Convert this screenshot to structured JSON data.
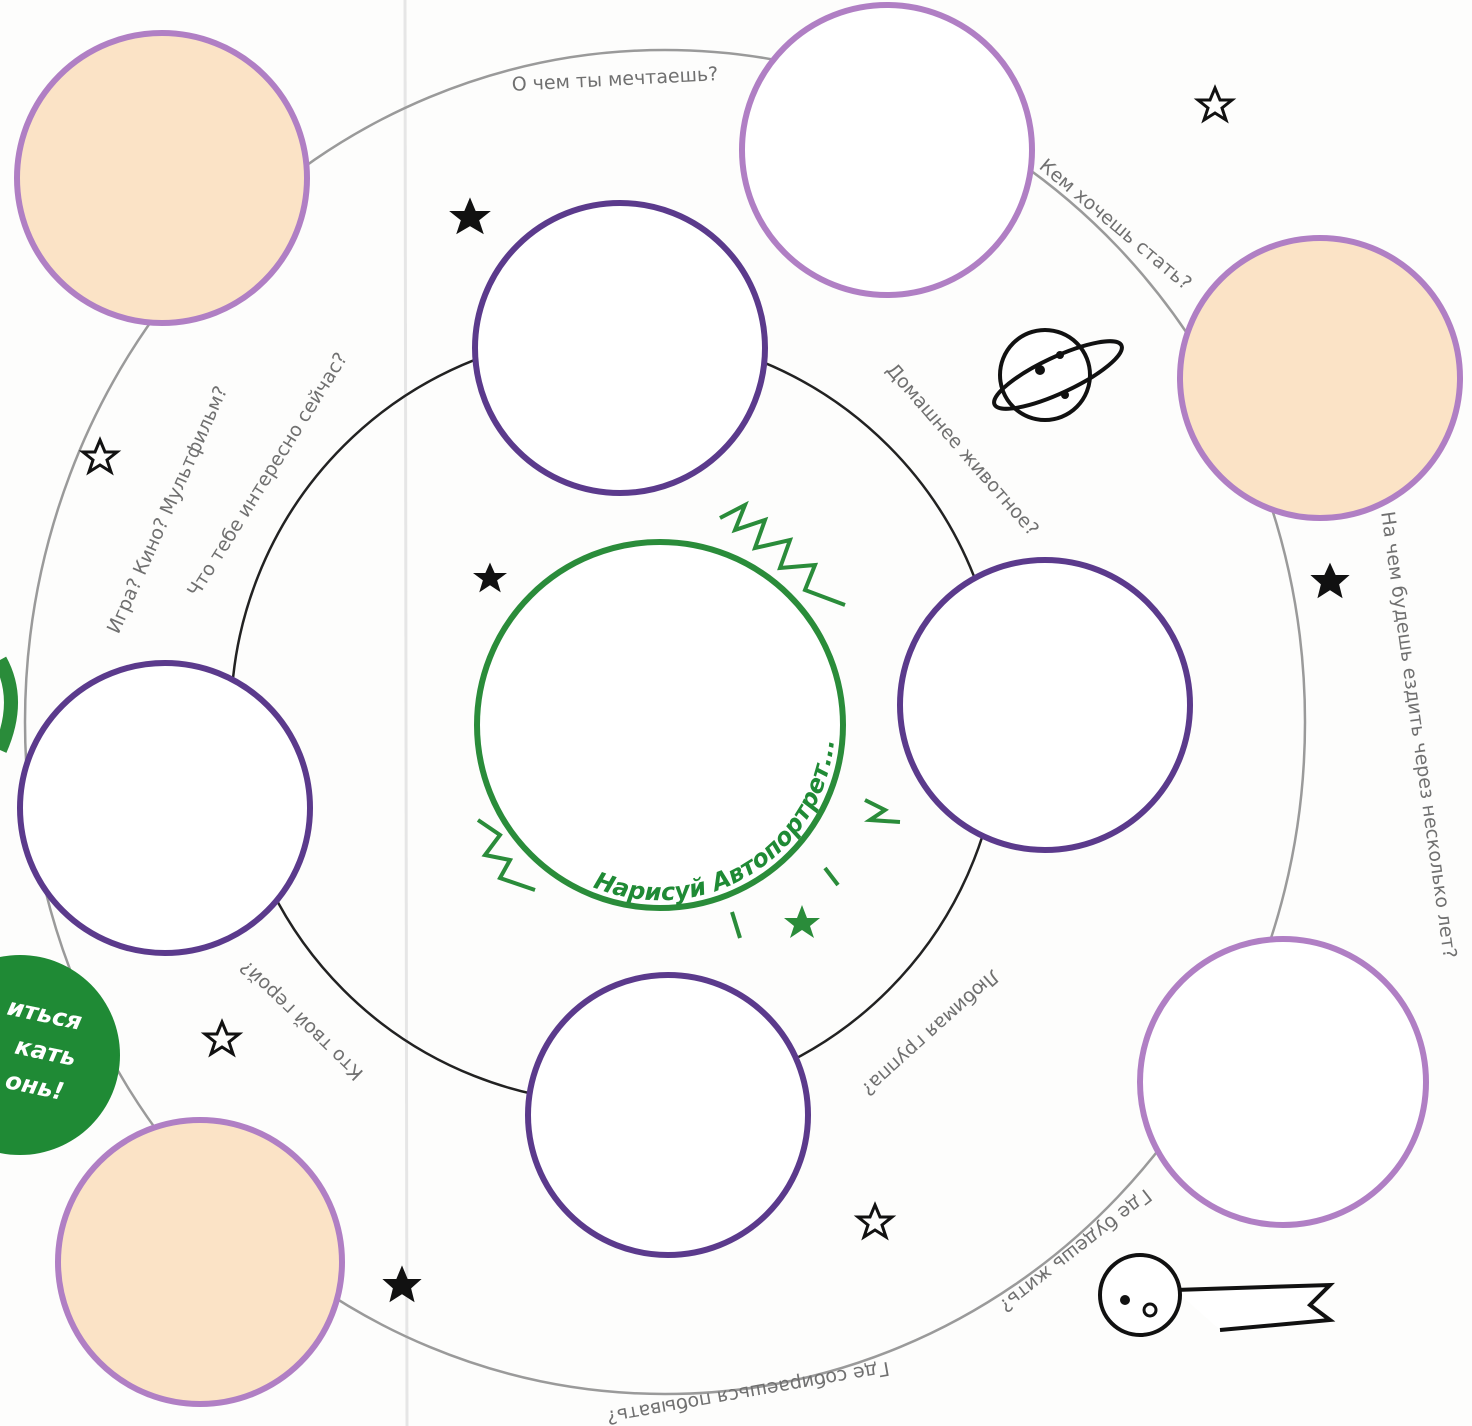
{
  "labels": [
    "О чем ты мечтаешь?",
    "Кем хочешь стать?",
    "На чем будешь ездить через несколько лет?",
    "Где будешь жить?",
    "Где собираешься побывать?",
    "Кто твой герой?",
    "Любимая группа?",
    "Домашнее животное?",
    "Что тебе интересно сейчас?",
    "Игра? Кино? Мультфильм?"
  ],
  "center_label": "Нарисуй Автопортрет...",
  "bubble_lines": [
    "иться",
    "кать",
    "онь!"
  ]
}
